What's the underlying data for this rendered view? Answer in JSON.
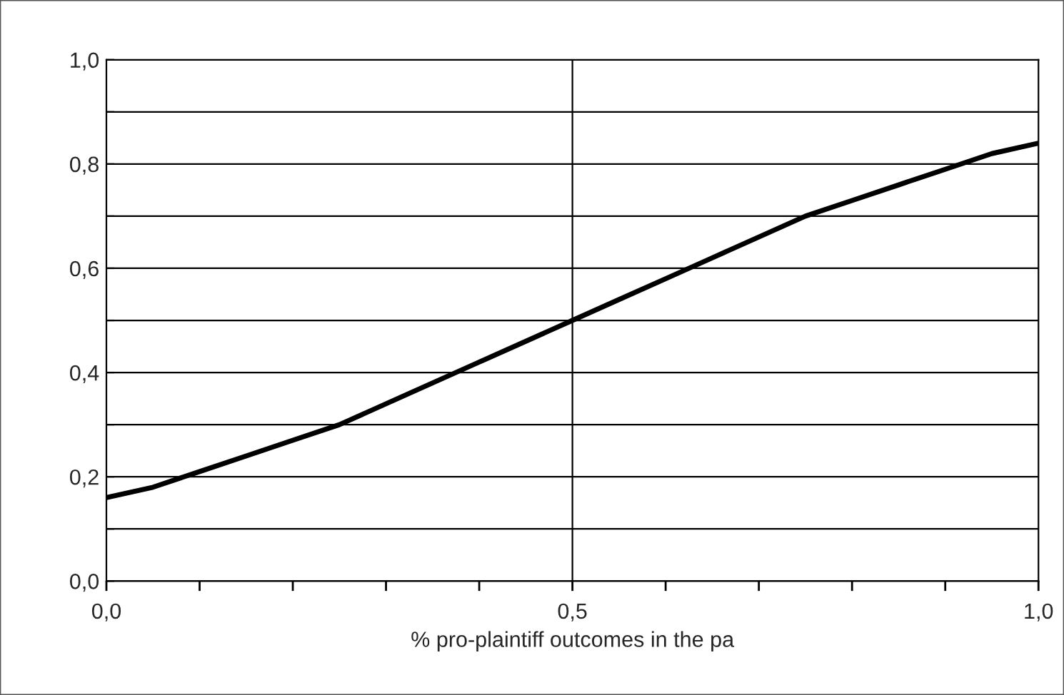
{
  "chart_data": {
    "type": "line",
    "xlabel": "% pro-plaintiff outcomes in the pa",
    "x": [
      0,
      0.05,
      0.1,
      0.15,
      0.2,
      0.25,
      0.3,
      0.35,
      0.4,
      0.45,
      0.5,
      0.55,
      0.6,
      0.65,
      0.7,
      0.75,
      0.8,
      0.85,
      0.9,
      0.95,
      1.0
    ],
    "series": [
      {
        "color": "#000000",
        "values": [
          0.16,
          0.18,
          0.21,
          0.24,
          0.27,
          0.3,
          0.34,
          0.38,
          0.42,
          0.46,
          0.5,
          0.54,
          0.58,
          0.62,
          0.66,
          0.7,
          0.73,
          0.76,
          0.79,
          0.82,
          0.84
        ]
      }
    ],
    "xlim": [
      0,
      1
    ],
    "ylim": [
      0,
      1
    ],
    "xticks": [
      {
        "value": 0,
        "label": "0,0"
      },
      {
        "value": 0.1,
        "label": null
      },
      {
        "value": 0.2,
        "label": null
      },
      {
        "value": 0.3,
        "label": null
      },
      {
        "value": 0.4,
        "label": null
      },
      {
        "value": 0.5,
        "label": "0,5"
      },
      {
        "value": 0.6,
        "label": null
      },
      {
        "value": 0.7,
        "label": null
      },
      {
        "value": 0.8,
        "label": null
      },
      {
        "value": 0.9,
        "label": null
      },
      {
        "value": 1.0,
        "label": "1,0"
      }
    ],
    "yticks": [
      {
        "value": 0,
        "label": "0,0"
      },
      {
        "value": 0.1,
        "label": null
      },
      {
        "value": 0.2,
        "label": "0,2"
      },
      {
        "value": 0.3,
        "label": null
      },
      {
        "value": 0.4,
        "label": "0,4"
      },
      {
        "value": 0.5,
        "label": null
      },
      {
        "value": 0.6,
        "label": "0,6"
      },
      {
        "value": 0.7,
        "label": null
      },
      {
        "value": 0.8,
        "label": "0,8"
      },
      {
        "value": 0.9,
        "label": null
      },
      {
        "value": 1.0,
        "label": "1,0"
      }
    ],
    "grid": "y",
    "ref_lines": [
      {
        "axis": "x",
        "value": 0.5
      }
    ],
    "marker": "none",
    "line_style": "solid"
  }
}
